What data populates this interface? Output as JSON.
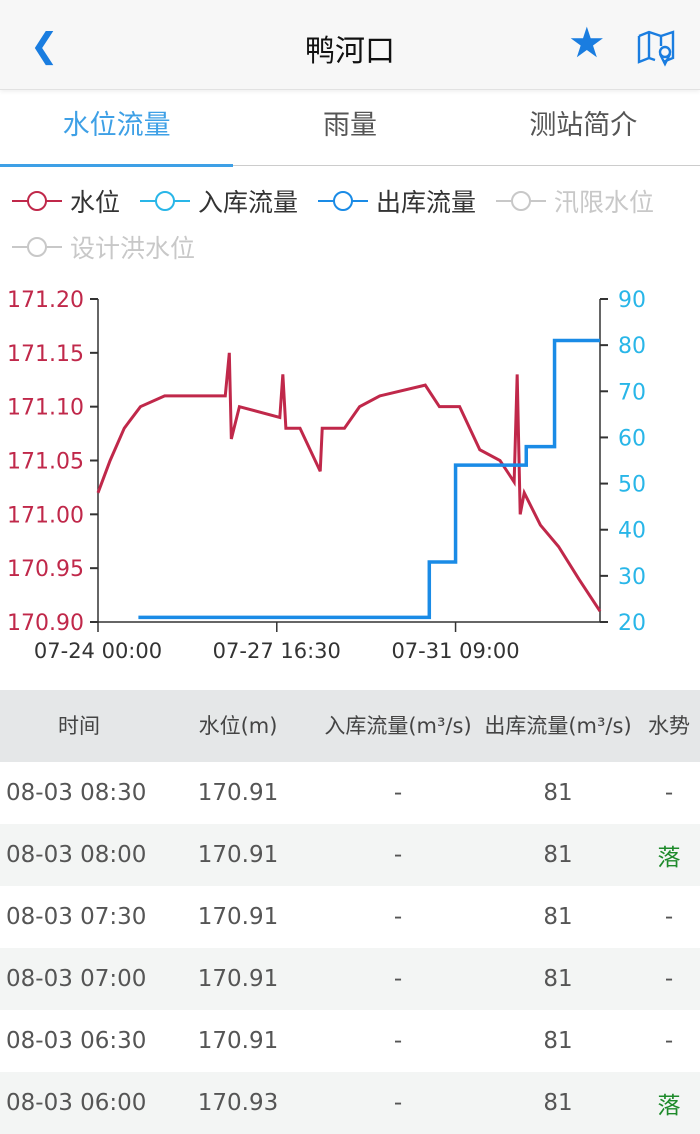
{
  "header": {
    "title": "鸭河口",
    "back_icon": "chevron-left-icon",
    "favorite_icon": "star-icon",
    "map_icon": "map-pin-icon"
  },
  "tabs": [
    {
      "label": "水位流量",
      "active": true
    },
    {
      "label": "雨量"
    },
    {
      "label": "测站简介"
    }
  ],
  "colors": {
    "accent": "#3ea0e6",
    "water_level": "#c0284a",
    "inflow": "#29b6e8",
    "outflow": "#1a8be6",
    "inactive": "#c8c8c8",
    "fall": "#1d8a2a"
  },
  "legend": [
    {
      "label": "水位",
      "color": "#c0284a",
      "active": true
    },
    {
      "label": "入库流量",
      "color": "#29b6e8",
      "active": true
    },
    {
      "label": "出库流量",
      "color": "#1a8be6",
      "active": true
    },
    {
      "label": "汛限水位",
      "color": "#c8c8c8",
      "active": false
    },
    {
      "label": "设计洪水位",
      "color": "#c8c8c8",
      "active": false
    }
  ],
  "chart_data": {
    "type": "line",
    "x_ticks": [
      "07-24 00:00",
      "07-27 16:30",
      "07-31 09:00"
    ],
    "x_range": [
      "07-24 00:00",
      "08-03 08:30"
    ],
    "y_left": {
      "range": [
        170.9,
        171.2
      ],
      "ticks": [
        "171.20",
        "171.15",
        "171.10",
        "171.05",
        "171.00",
        "170.95",
        "170.90"
      ]
    },
    "y_right": {
      "range": [
        20,
        90
      ],
      "ticks": [
        "90",
        "80",
        "70",
        "60",
        "50",
        "40",
        "30",
        "20"
      ]
    },
    "series": [
      {
        "name": "水位",
        "axis": "left",
        "step": false,
        "points": [
          [
            "07-24 00:00",
            171.02
          ],
          [
            "07-24 06:00",
            171.05
          ],
          [
            "07-24 13:00",
            171.08
          ],
          [
            "07-24 21:00",
            171.1
          ],
          [
            "07-25 09:00",
            171.11
          ],
          [
            "07-26 15:00",
            171.11
          ],
          [
            "07-26 17:00",
            171.15
          ],
          [
            "07-26 18:00",
            171.07
          ],
          [
            "07-26 22:00",
            171.1
          ],
          [
            "07-27 18:00",
            171.09
          ],
          [
            "07-27 19:30",
            171.13
          ],
          [
            "07-27 21:00",
            171.08
          ],
          [
            "07-28 04:00",
            171.08
          ],
          [
            "07-28 14:00",
            171.04
          ],
          [
            "07-28 15:00",
            171.08
          ],
          [
            "07-29 02:00",
            171.08
          ],
          [
            "07-29 09:30",
            171.1
          ],
          [
            "07-29 19:30",
            171.11
          ],
          [
            "07-30 18:00",
            171.12
          ],
          [
            "07-31 01:00",
            171.1
          ],
          [
            "07-31 11:00",
            171.1
          ],
          [
            "07-31 21:00",
            171.06
          ],
          [
            "08-01 07:00",
            171.05
          ],
          [
            "08-01 14:00",
            171.03
          ],
          [
            "08-01 15:30",
            171.13
          ],
          [
            "08-01 17:00",
            171.0
          ],
          [
            "08-01 19:00",
            171.02
          ],
          [
            "08-02 03:00",
            170.99
          ],
          [
            "08-02 12:00",
            170.97
          ],
          [
            "08-02 22:00",
            170.94
          ],
          [
            "08-03 08:30",
            170.91
          ]
        ]
      },
      {
        "name": "出库流量",
        "axis": "right",
        "step": true,
        "points": [
          [
            "07-24 20:00",
            21
          ],
          [
            "07-30 20:00",
            33
          ],
          [
            "07-31 09:00",
            54
          ],
          [
            "08-01 20:00",
            58
          ],
          [
            "08-02 10:00",
            81
          ],
          [
            "08-03 08:30",
            81
          ]
        ]
      }
    ]
  },
  "table": {
    "headers": {
      "time": "时间",
      "level": "水位(m)",
      "inflow": "入库流量(m³/s)",
      "outflow": "出库流量(m³/s)",
      "trend": "水势"
    },
    "rows": [
      {
        "time": "08-03 08:30",
        "level": "170.91",
        "inflow": "-",
        "outflow": "81",
        "trend": "-"
      },
      {
        "time": "08-03 08:00",
        "level": "170.91",
        "inflow": "-",
        "outflow": "81",
        "trend": "落"
      },
      {
        "time": "08-03 07:30",
        "level": "170.91",
        "inflow": "-",
        "outflow": "81",
        "trend": "-"
      },
      {
        "time": "08-03 07:00",
        "level": "170.91",
        "inflow": "-",
        "outflow": "81",
        "trend": "-"
      },
      {
        "time": "08-03 06:30",
        "level": "170.91",
        "inflow": "-",
        "outflow": "81",
        "trend": "-"
      },
      {
        "time": "08-03 06:00",
        "level": "170.93",
        "inflow": "-",
        "outflow": "81",
        "trend": "落"
      }
    ]
  }
}
